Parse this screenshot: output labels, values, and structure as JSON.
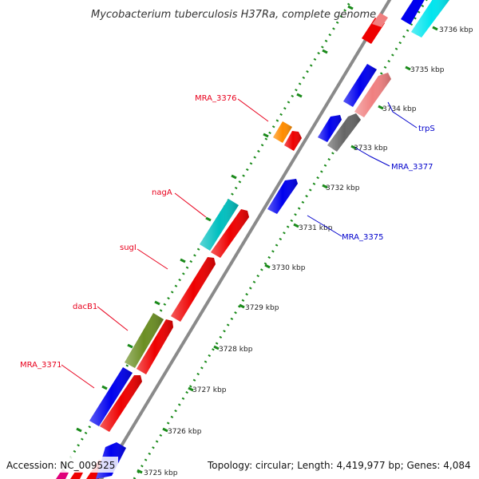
{
  "title": "Mycobacterium tuberculosis H37Ra, complete genome",
  "footer": {
    "accession": "Accession: NC_009525",
    "topology": "Topology: circular; Length: 4,419,977 bp; Genes: 4,084"
  },
  "ticks": [
    {
      "label": "3725 kbp"
    },
    {
      "label": "3726 kbp"
    },
    {
      "label": "3727 kbp"
    },
    {
      "label": "3728 kbp"
    },
    {
      "label": "3729 kbp"
    },
    {
      "label": "3730 kbp"
    },
    {
      "label": "3731 kbp"
    },
    {
      "label": "3732 kbp"
    },
    {
      "label": "3733 kbp"
    },
    {
      "label": "3734 kbp"
    },
    {
      "label": "3735 kbp"
    },
    {
      "label": "3736 kbp"
    }
  ],
  "gene_labels": [
    {
      "text": "MRA_3376",
      "strand": "forward"
    },
    {
      "text": "nagA",
      "strand": "forward"
    },
    {
      "text": "sugI",
      "strand": "forward"
    },
    {
      "text": "dacB1",
      "strand": "forward"
    },
    {
      "text": "MRA_3371",
      "strand": "forward"
    },
    {
      "text": "trpS",
      "strand": "reverse"
    },
    {
      "text": "MRA_3377",
      "strand": "reverse"
    },
    {
      "text": "MRA_3375",
      "strand": "reverse"
    }
  ],
  "colors": {
    "forward_label": "#e8001c",
    "reverse_label": "#0000cc",
    "backbone": "#8a8a8a",
    "tick_dots": "#1a8a1a"
  }
}
